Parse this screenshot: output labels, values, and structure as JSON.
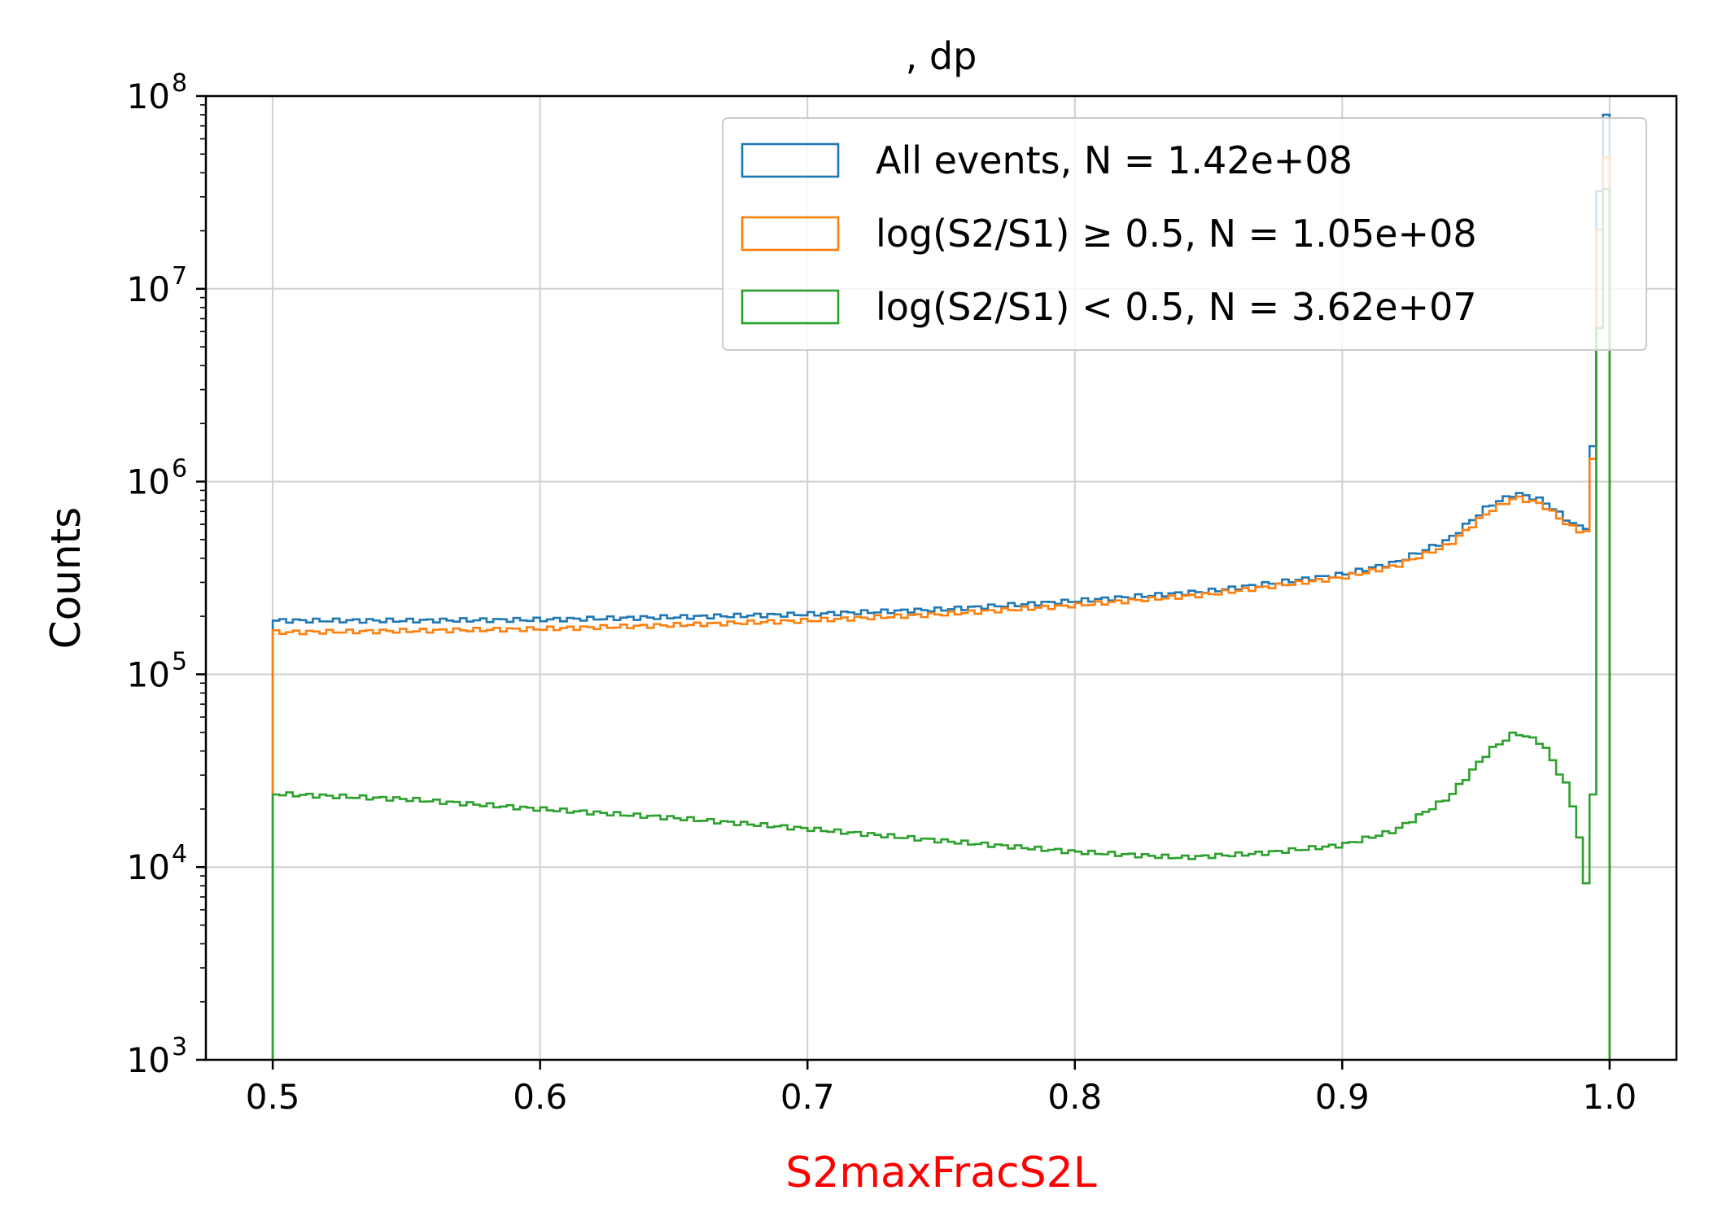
{
  "chart_data": {
    "type": "line",
    "title": ", dp",
    "xlabel": "S2maxFracS2L",
    "xlabel_color": "#ff0000",
    "ylabel": "Counts",
    "xscale": "linear",
    "yscale": "log",
    "xlim": [
      0.475,
      1.025
    ],
    "ylim": [
      1000,
      100000000
    ],
    "xticks": [
      0.5,
      0.6,
      0.7,
      0.8,
      0.9,
      1.0
    ],
    "xtick_labels": [
      "0.5",
      "0.6",
      "0.7",
      "0.8",
      "0.9",
      "1.0"
    ],
    "yticks": [
      1000,
      10000,
      100000,
      1000000,
      10000000,
      100000000
    ],
    "ytick_labels": [
      {
        "base": "10",
        "exp": "3"
      },
      {
        "base": "10",
        "exp": "4"
      },
      {
        "base": "10",
        "exp": "5"
      },
      {
        "base": "10",
        "exp": "6"
      },
      {
        "base": "10",
        "exp": "7"
      },
      {
        "base": "10",
        "exp": "8"
      }
    ],
    "grid": true,
    "legend_position": "top-right",
    "histtype": "step",
    "series": [
      {
        "name": "All events, N = 1.42e+08",
        "color": "#1f77b4",
        "x": [
          0.5,
          0.55,
          0.6,
          0.65,
          0.7,
          0.75,
          0.8,
          0.85,
          0.9,
          0.92,
          0.94,
          0.955,
          0.965,
          0.975,
          0.985,
          0.99,
          0.993,
          0.997,
          1.0
        ],
        "y": [
          190000,
          190000,
          192000,
          198000,
          205000,
          217000,
          240000,
          270000,
          330000,
          380000,
          500000,
          750000,
          870000,
          800000,
          620000,
          570000,
          600000,
          80000000,
          80000000
        ]
      },
      {
        "name": "log(S2/S1) ≥ 0.5, N = 1.05e+08",
        "color": "#ff7f0e",
        "x": [
          0.5,
          0.55,
          0.6,
          0.65,
          0.7,
          0.75,
          0.8,
          0.85,
          0.9,
          0.92,
          0.94,
          0.955,
          0.965,
          0.975,
          0.985,
          0.99,
          0.993,
          0.997,
          1.0
        ],
        "y": [
          165000,
          168000,
          172000,
          180000,
          190000,
          205000,
          228000,
          260000,
          318000,
          365000,
          470000,
          700000,
          830000,
          760000,
          590000,
          545000,
          560000,
          48000000,
          48000000
        ]
      },
      {
        "name": "log(S2/S1) < 0.5, N = 3.62e+07",
        "color": "#2ca02c",
        "x": [
          0.5,
          0.55,
          0.6,
          0.65,
          0.7,
          0.75,
          0.8,
          0.84,
          0.87,
          0.9,
          0.92,
          0.94,
          0.955,
          0.965,
          0.975,
          0.985,
          0.99,
          0.993,
          0.997,
          1.0
        ],
        "y": [
          24000,
          22500,
          20000,
          18000,
          15800,
          13700,
          12000,
          11200,
          11800,
          13000,
          15500,
          23000,
          40000,
          50000,
          44000,
          25000,
          12000,
          4600,
          33000000,
          33000000
        ]
      }
    ]
  }
}
